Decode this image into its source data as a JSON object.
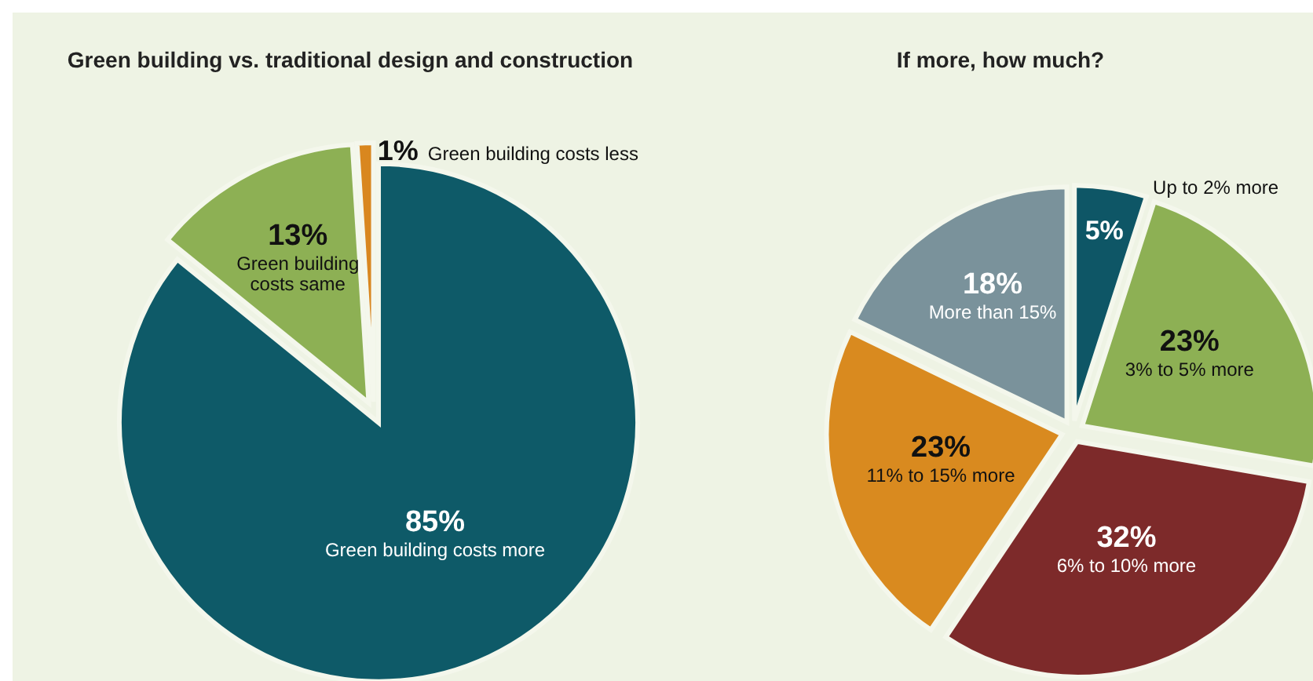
{
  "chart_data": [
    {
      "type": "pie",
      "title": "Green building vs. traditional design and construction",
      "categories": [
        "Green building costs more",
        "Green building costs same",
        "Green building costs less"
      ],
      "values": [
        85,
        13,
        1
      ],
      "value_labels": [
        "85%",
        "13%",
        "1%"
      ],
      "colors": [
        "#0e5a68",
        "#8db054",
        "#d9871f"
      ],
      "legend": false
    },
    {
      "type": "pie",
      "title": "If more, how much?",
      "categories": [
        "Up to 2% more",
        "3% to 5% more",
        "6% to 10% more",
        "11% to 15% more",
        "More than 15%"
      ],
      "values": [
        5,
        23,
        32,
        23,
        18
      ],
      "value_labels": [
        "5%",
        "23%",
        "32%",
        "23%",
        "18%"
      ],
      "colors": [
        "#0e5666",
        "#8db054",
        "#7d2a2a",
        "#d98a1f",
        "#7a929b"
      ],
      "legend": false
    }
  ]
}
